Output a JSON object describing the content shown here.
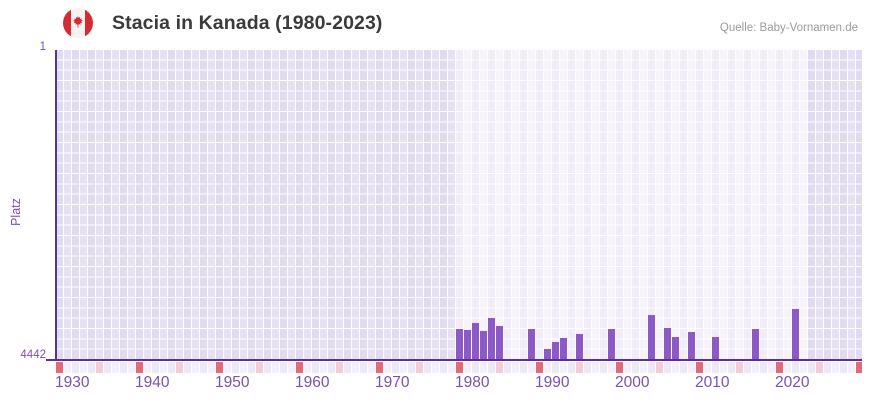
{
  "header": {
    "title": "Stacia in Kanada (1980-2023)",
    "source": "Quelle: Baby-Vornamen.de",
    "flag_icon": "canada-flag-icon"
  },
  "chart_data": {
    "type": "bar",
    "title": "Stacia in Kanada (1980-2023)",
    "xlabel": "",
    "ylabel": "Platz",
    "y_axis": {
      "min": 1,
      "max": 4442,
      "reversed": true,
      "tick_labels": [
        "1",
        "4442"
      ]
    },
    "x_axis": {
      "grid_start": 1930,
      "grid_end": 2030,
      "tick_interval": 10,
      "tick_years": [
        1930,
        1940,
        1950,
        1960,
        1970,
        1980,
        1990,
        2000,
        2010,
        2020
      ],
      "minor_ticks_years_ending_in": 5
    },
    "highlight_range": {
      "from": 1980,
      "to": 2023
    },
    "series": [
      {
        "name": "Platz",
        "points": [
          {
            "year": 1980,
            "rank": 4000
          },
          {
            "year": 1981,
            "rank": 4014
          },
          {
            "year": 1982,
            "rank": 3914
          },
          {
            "year": 1983,
            "rank": 4028
          },
          {
            "year": 1984,
            "rank": 3843
          },
          {
            "year": 1985,
            "rank": 3957
          },
          {
            "year": 1989,
            "rank": 4000
          },
          {
            "year": 1991,
            "rank": 4284
          },
          {
            "year": 1992,
            "rank": 4185
          },
          {
            "year": 1993,
            "rank": 4121
          },
          {
            "year": 1995,
            "rank": 4064
          },
          {
            "year": 1999,
            "rank": 4000
          },
          {
            "year": 2004,
            "rank": 3800
          },
          {
            "year": 2006,
            "rank": 3986
          },
          {
            "year": 2007,
            "rank": 4114
          },
          {
            "year": 2009,
            "rank": 4043
          },
          {
            "year": 2012,
            "rank": 4114
          },
          {
            "year": 2017,
            "rank": 4000
          },
          {
            "year": 2022,
            "rank": 3715
          }
        ]
      }
    ],
    "legend": {
      "visible": false
    },
    "grid": "on",
    "colors": {
      "bar": "#8d59c7",
      "axis_line": "#5c3196",
      "axis_label": "#7b50b2",
      "title_text": "#3b3b3b",
      "source_text": "#9b9b9b",
      "band_out_a": "#e0dbee",
      "band_out_b": "#e6e1f1",
      "band_in_a": "#f0ecf8",
      "band_in_b": "#f6f3fb",
      "gridline": "#ffffff",
      "tick_major": "#e1697a",
      "tick_minor": "#f3ccd8",
      "tick_default_a": "#ede8f5",
      "tick_default_b": "#f3f0f9",
      "flag_red": "#d52b32",
      "flag_white": "#f5f3f0"
    }
  }
}
